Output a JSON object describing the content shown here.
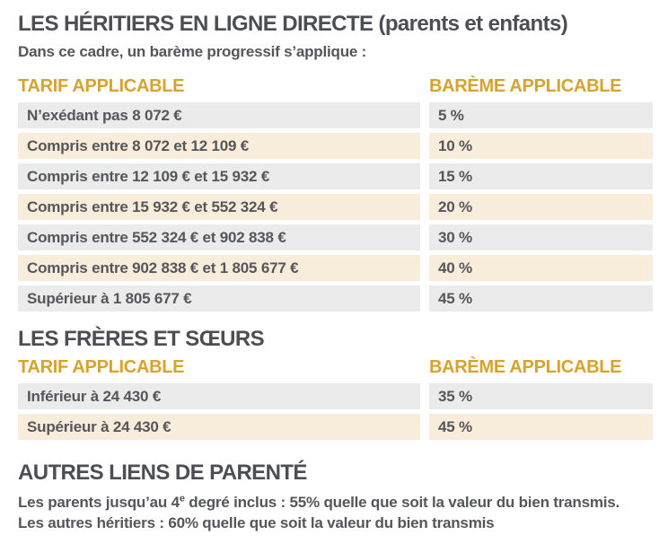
{
  "colors": {
    "accent_gold": "#d7a32e",
    "heading_gray": "#4d4e53",
    "text_gray": "#55565b",
    "row_gray": "#ebebeb",
    "row_cream": "#f8eddb",
    "background": "#ffffff"
  },
  "direct_heirs": {
    "title": "LES HÉRITIERS EN LIGNE DIRECTE (parents et enfants)",
    "subtitle": "Dans ce cadre, un barème progressif s’applique :",
    "col_tarif": "TARIF APPLICABLE",
    "col_bareme": "BARÈME APPLICABLE",
    "rows": [
      {
        "tarif": "N’exédant pas 8 072 €",
        "bareme": "5 %"
      },
      {
        "tarif": "Compris entre 8 072 et 12 109 €",
        "bareme": "10 %"
      },
      {
        "tarif": "Compris entre 12 109 € et 15 932 €",
        "bareme": "15 %"
      },
      {
        "tarif": "Compris entre 15 932 € et 552 324 €",
        "bareme": "20 %"
      },
      {
        "tarif": "Compris entre 552 324 € et 902 838 €",
        "bareme": "30 %"
      },
      {
        "tarif": "Compris entre 902 838 € et 1 805 677 €",
        "bareme": "40 %"
      },
      {
        "tarif": "Supérieur à 1 805 677 €",
        "bareme": "45 %"
      }
    ]
  },
  "siblings": {
    "title": "LES FRÈRES ET SŒURS",
    "col_tarif": "TARIF APPLICABLE",
    "col_bareme": "BARÈME APPLICABLE",
    "rows": [
      {
        "tarif": "Inférieur à 24 430 €",
        "bareme": "35 %"
      },
      {
        "tarif": "Supérieur à 24 430 €",
        "bareme": "45 %"
      }
    ]
  },
  "other_relatives": {
    "title": "AUTRES LIENS DE PARENTÉ",
    "line1_prefix": "Les parents jusqu’au 4",
    "line1_sup": "e",
    "line1_suffix": " degré inclus : 55% quelle que soit la valeur du bien transmis.",
    "line2": "Les autres héritiers : 60% quelle que soit la valeur du bien transmis"
  }
}
